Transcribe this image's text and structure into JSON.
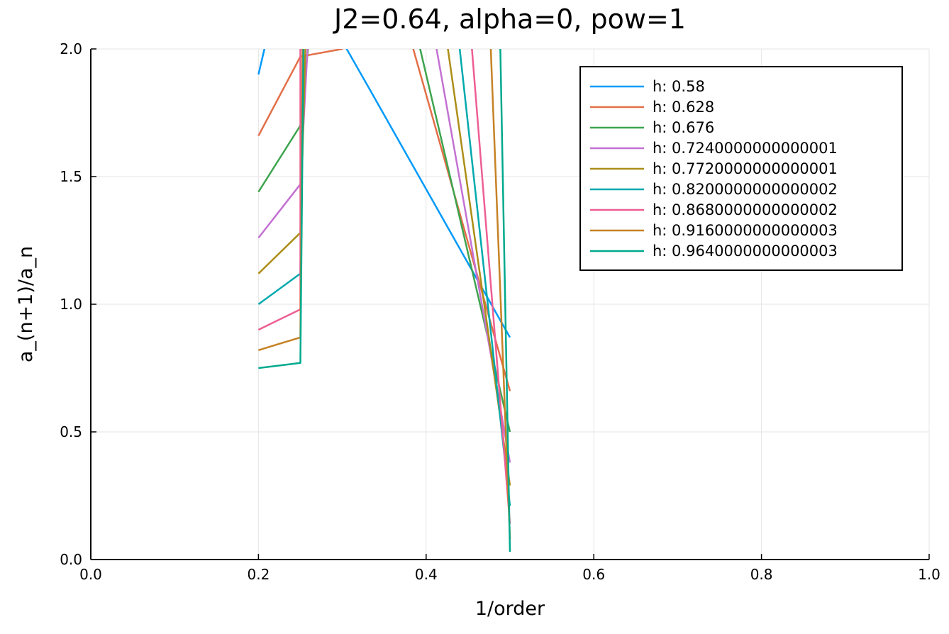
{
  "chart_data": {
    "type": "line",
    "title": "J2=0.64, alpha=0, pow=1",
    "xlabel": "1/order",
    "ylabel": "a_(n+1)/a_n",
    "xlim": [
      0.0,
      1.0
    ],
    "ylim": [
      0.0,
      2.0
    ],
    "xticks": [
      "0.0",
      "0.2",
      "0.4",
      "0.6",
      "0.8",
      "1.0"
    ],
    "yticks": [
      "0.0",
      "0.5",
      "1.0",
      "1.5",
      "2.0"
    ],
    "grid": true,
    "legend_position": "top-right",
    "series": [
      {
        "name": "h: 0.58",
        "color": "#009AFA",
        "points": [
          [
            0.2,
            1.9
          ],
          [
            0.25,
            2.6
          ],
          [
            0.3,
            2.03
          ],
          [
            0.333,
            1.84
          ],
          [
            0.5,
            0.87
          ]
        ]
      },
      {
        "name": "h: 0.628",
        "color": "#E36F47",
        "points": [
          [
            0.2,
            1.66
          ],
          [
            0.25,
            1.97
          ],
          [
            0.3,
            2.0
          ],
          [
            0.333,
            2.6
          ],
          [
            0.5,
            0.66
          ]
        ]
      },
      {
        "name": "h: 0.676",
        "color": "#3EA44E",
        "points": [
          [
            0.2,
            1.44
          ],
          [
            0.25,
            1.7
          ],
          [
            0.2833,
            2.8
          ],
          [
            0.35,
            2.6
          ],
          [
            0.5,
            0.5
          ]
        ]
      },
      {
        "name": "h: 0.7240000000000001",
        "color": "#C371D2",
        "points": [
          [
            0.2,
            1.26
          ],
          [
            0.25,
            1.47
          ],
          [
            0.2714,
            2.8
          ],
          [
            0.38,
            2.6
          ],
          [
            0.5,
            0.38
          ]
        ]
      },
      {
        "name": "h: 0.7720000000000001",
        "color": "#AC8E18",
        "points": [
          [
            0.2,
            1.12
          ],
          [
            0.25,
            1.28
          ],
          [
            0.2625,
            2.8
          ],
          [
            0.4,
            2.6
          ],
          [
            0.5,
            0.29
          ]
        ]
      },
      {
        "name": "h: 0.8200000000000002",
        "color": "#00A9AD",
        "points": [
          [
            0.2,
            1.0
          ],
          [
            0.25,
            1.12
          ],
          [
            0.2556,
            2.8
          ],
          [
            0.42,
            2.6
          ],
          [
            0.5,
            0.21
          ]
        ]
      },
      {
        "name": "h: 0.8680000000000002",
        "color": "#ED5E93",
        "points": [
          [
            0.2,
            0.9
          ],
          [
            0.25,
            0.98
          ],
          [
            0.25,
            2.8
          ],
          [
            0.44,
            2.6
          ],
          [
            0.5,
            0.14
          ]
        ]
      },
      {
        "name": "h: 0.9160000000000003",
        "color": "#C68225",
        "points": [
          [
            0.2,
            0.82
          ],
          [
            0.25,
            0.87
          ],
          [
            0.2545,
            2.8
          ],
          [
            0.47,
            2.6
          ],
          [
            0.5,
            0.08
          ]
        ]
      },
      {
        "name": "h: 0.9640000000000003",
        "color": "#00A98D",
        "points": [
          [
            0.2,
            0.75
          ],
          [
            0.25,
            0.77
          ],
          [
            0.256,
            2.8
          ],
          [
            0.485,
            2.6
          ],
          [
            0.5,
            0.03
          ]
        ]
      }
    ]
  }
}
